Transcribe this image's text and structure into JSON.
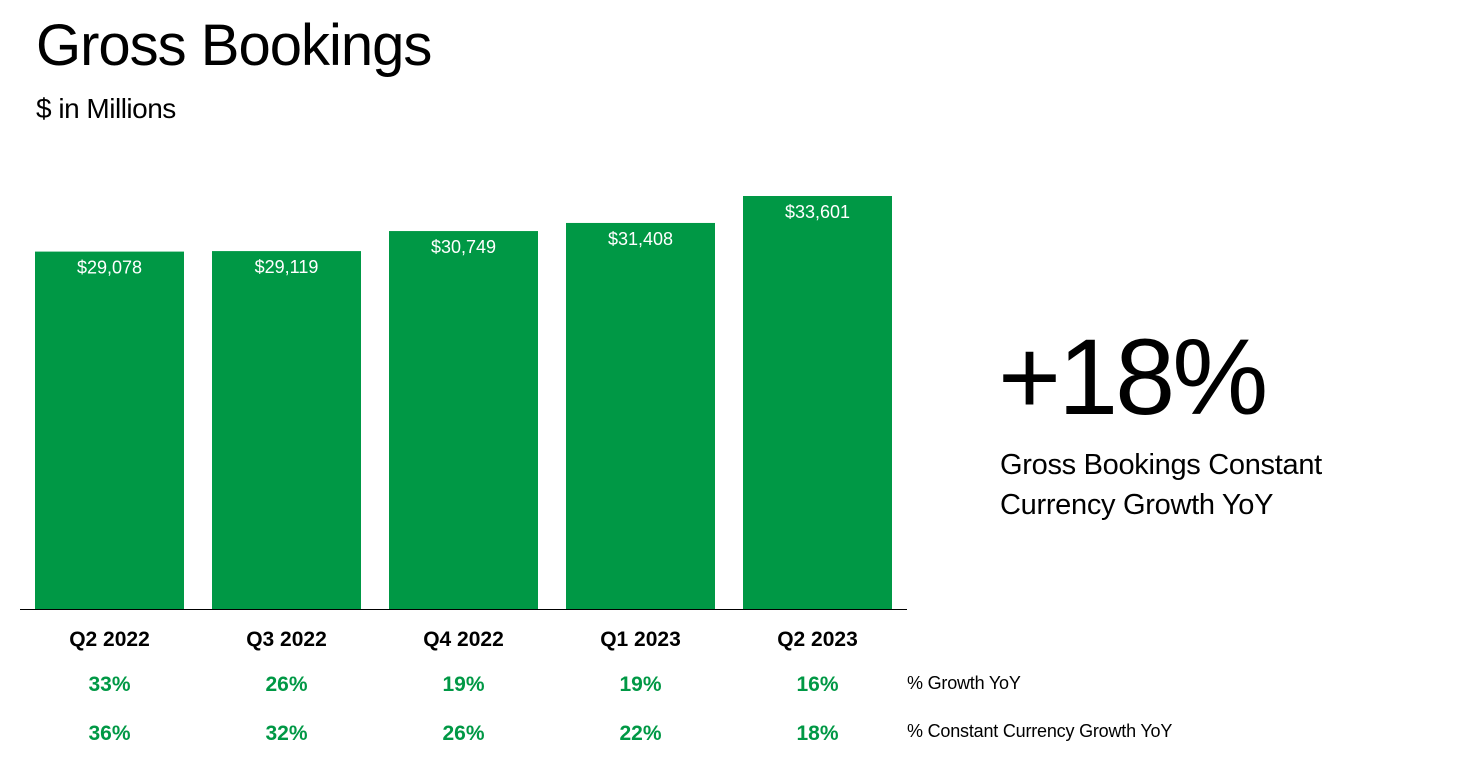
{
  "header": {
    "title": "Gross Bookings",
    "subtitle": "$ in Millions"
  },
  "highlight": {
    "value": "+18%",
    "caption": "Gross Bookings Constant Currency Growth YoY"
  },
  "rows": {
    "growth_label": "% Growth YoY",
    "cc_growth_label": "% Constant Currency Growth YoY"
  },
  "colors": {
    "bar": "#009845",
    "growth_text": "#009845",
    "axis": "#000000",
    "label_on_bar": "#ffffff"
  },
  "chart_data": {
    "type": "bar",
    "title": "Gross Bookings",
    "ylabel": "$ in Millions",
    "categories": [
      "Q2 2022",
      "Q3 2022",
      "Q4 2022",
      "Q1 2023",
      "Q2 2023"
    ],
    "values": [
      29078,
      29119,
      30749,
      31408,
      33601
    ],
    "value_labels": [
      "$29,078",
      "$29,119",
      "$30,749",
      "$31,408",
      "$33,601"
    ],
    "growth_yoy": [
      "33%",
      "26%",
      "19%",
      "19%",
      "16%"
    ],
    "cc_growth_yoy": [
      "36%",
      "32%",
      "26%",
      "22%",
      "18%"
    ],
    "ylim": [
      0,
      33601
    ],
    "grid": false,
    "legend": "none"
  }
}
